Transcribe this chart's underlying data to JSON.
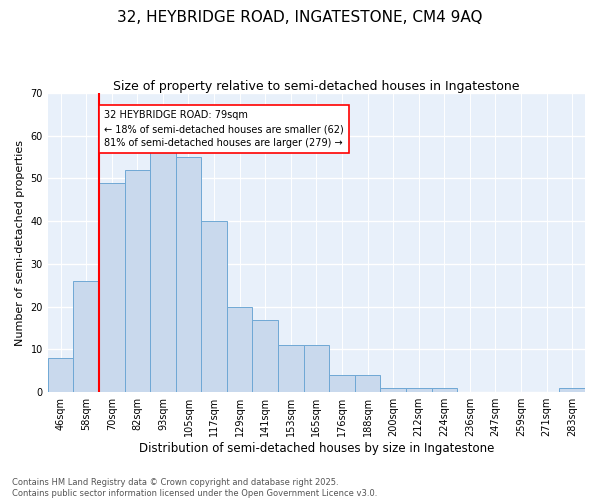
{
  "title": "32, HEYBRIDGE ROAD, INGATESTONE, CM4 9AQ",
  "subtitle": "Size of property relative to semi-detached houses in Ingatestone",
  "xlabel": "Distribution of semi-detached houses by size in Ingatestone",
  "ylabel": "Number of semi-detached properties",
  "bins": [
    "46sqm",
    "58sqm",
    "70sqm",
    "82sqm",
    "93sqm",
    "105sqm",
    "117sqm",
    "129sqm",
    "141sqm",
    "153sqm",
    "165sqm",
    "176sqm",
    "188sqm",
    "200sqm",
    "212sqm",
    "224sqm",
    "236sqm",
    "247sqm",
    "259sqm",
    "271sqm",
    "283sqm"
  ],
  "values": [
    8,
    26,
    49,
    52,
    58,
    55,
    40,
    20,
    17,
    11,
    11,
    4,
    4,
    1,
    1,
    1,
    0,
    0,
    0,
    0,
    1
  ],
  "bar_color": "#c9d9ed",
  "bar_edge_color": "#6fa8d5",
  "background_color": "#e8f0fa",
  "grid_color": "#ffffff",
  "vline_x_index": 2,
  "vline_color": "red",
  "annotation_text": "32 HEYBRIDGE ROAD: 79sqm\n← 18% of semi-detached houses are smaller (62)\n81% of semi-detached houses are larger (279) →",
  "ylim": [
    0,
    70
  ],
  "yticks": [
    0,
    10,
    20,
    30,
    40,
    50,
    60,
    70
  ],
  "footnote": "Contains HM Land Registry data © Crown copyright and database right 2025.\nContains public sector information licensed under the Open Government Licence v3.0.",
  "title_fontsize": 11,
  "subtitle_fontsize": 9,
  "xlabel_fontsize": 8.5,
  "ylabel_fontsize": 8,
  "tick_fontsize": 7,
  "annotation_fontsize": 7,
  "footnote_fontsize": 6
}
